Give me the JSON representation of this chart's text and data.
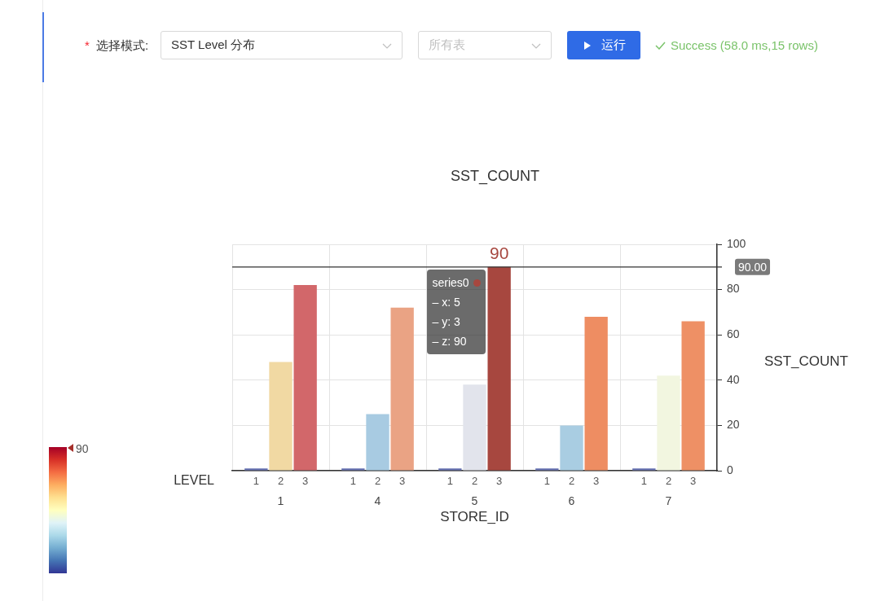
{
  "chart_data": {
    "type": "bar",
    "title": "SST_COUNT",
    "xlabel": "STORE_ID",
    "ylabel": "SST_COUNT",
    "legend_title": "LEVEL",
    "categories": [
      "1",
      "4",
      "5",
      "6",
      "7"
    ],
    "series": [
      {
        "name": "1",
        "values": [
          1,
          1,
          1,
          1,
          1
        ],
        "colors": [
          "#6672b2",
          "#6672b2",
          "#6672b2",
          "#6672b2",
          "#6672b2"
        ]
      },
      {
        "name": "2",
        "values": [
          48,
          25,
          38,
          20,
          42
        ],
        "colors": [
          "#f1d9a3",
          "#a8cbe2",
          "#e2e4ec",
          "#a9cde2",
          "#f2f6e0"
        ]
      },
      {
        "name": "3",
        "values": [
          82,
          72,
          90,
          68,
          66
        ],
        "colors": [
          "#d2676a",
          "#eaa384",
          "#a7473f",
          "#ee8d62",
          "#ee9065"
        ],
        "value_labels": [
          null,
          null,
          "90",
          null,
          null
        ]
      }
    ],
    "ylim": [
      0,
      100
    ],
    "yticks": [
      0,
      20,
      40,
      60,
      80,
      100
    ],
    "grid": true,
    "ref_lines": [
      {
        "axis": "y",
        "value": 90,
        "label": "90.00",
        "color": "#333333"
      }
    ],
    "annotations": [
      "*",
      "选择模式:",
      "SST Level 分布",
      "所有表",
      "运行",
      "Success (58.0 ms,15 rows)",
      "90",
      {
        "text": "series0\n– x: 5\n– y: 3\n– z: 90",
        "x": "5",
        "y": 90
      }
    ]
  }
}
